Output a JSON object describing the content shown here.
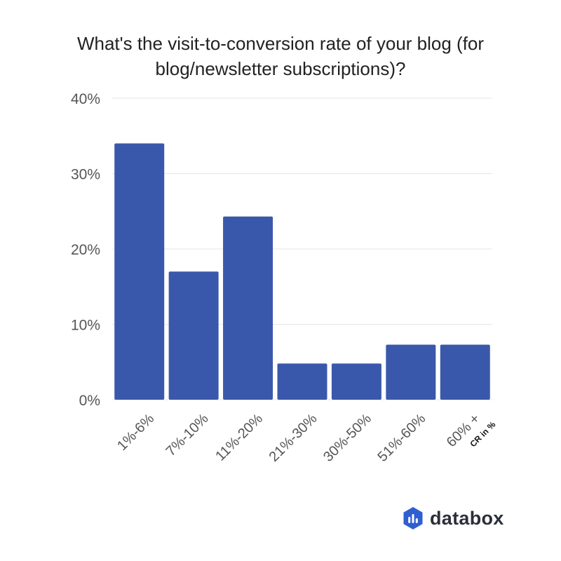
{
  "chart_data": {
    "type": "bar",
    "title": "What's the visit-to-conversion rate of your blog (for blog/newsletter subscriptions)?",
    "xlabel": "CR in %",
    "ylabel": "",
    "categories": [
      "1%-6%",
      "7%-10%",
      "11%-20%",
      "21%-30%",
      "30%-50%",
      "51%-60%",
      "60% +"
    ],
    "values": [
      34,
      17,
      24.3,
      4.8,
      4.8,
      7.3,
      7.3
    ],
    "ylim": [
      0,
      40
    ],
    "yticks": [
      0,
      10,
      20,
      30,
      40
    ],
    "ytick_labels": [
      "0%",
      "10%",
      "20%",
      "30%",
      "40%"
    ],
    "grid": true,
    "legend": "none",
    "bar_color": "#3a58ab",
    "grid_color": "#e6e6e6"
  },
  "brand": {
    "name": "databox",
    "logo_icon": "databox-logo-icon",
    "logo_color": "#2f5fd0"
  }
}
